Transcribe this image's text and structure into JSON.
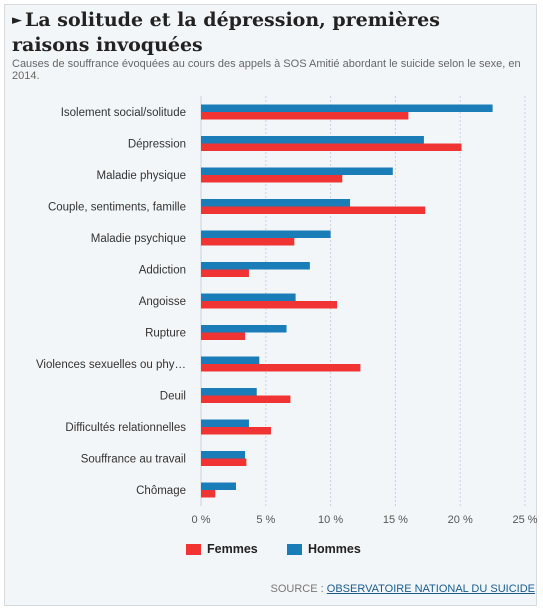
{
  "header": {
    "title": "La solitude et la dépression, premières raisons invoquées",
    "subtitle": "Causes de souffrance évoquées au cours des appels à SOS Amitié abordant le suicide selon le sexe, en 2014."
  },
  "colors": {
    "femmes": "#f03434",
    "hommes": "#1b7db7",
    "grid": "#c9d3dc"
  },
  "chart_data": {
    "type": "bar",
    "orientation": "horizontal",
    "categories": [
      "Isolement social/solitude",
      "Dépression",
      "Maladie physique",
      "Couple, sentiments, famille",
      "Maladie psychique",
      "Addiction",
      "Angoisse",
      "Rupture",
      "Violences sexuelles ou phy…",
      "Deuil",
      "Difficultés relationnelles",
      "Souffrance au travail",
      "Chômage"
    ],
    "series": [
      {
        "name": "Hommes",
        "color": "#1b7db7",
        "values": [
          22.5,
          17.2,
          14.8,
          11.5,
          10.0,
          8.4,
          7.3,
          6.6,
          4.5,
          4.3,
          3.7,
          3.4,
          2.7
        ]
      },
      {
        "name": "Femmes",
        "color": "#f03434",
        "values": [
          16.0,
          20.1,
          10.9,
          17.3,
          7.2,
          3.7,
          10.5,
          3.4,
          12.3,
          6.9,
          5.4,
          3.5,
          1.1
        ]
      }
    ],
    "xlim": [
      0,
      25
    ],
    "xticks": [
      0,
      5,
      10,
      15,
      20,
      25
    ],
    "xtick_labels": [
      "0 %",
      "5 %",
      "10 %",
      "15 %",
      "20 %",
      "25 %"
    ],
    "grid": true,
    "legend_position": "bottom"
  },
  "legend": [
    {
      "label": "Femmes",
      "color": "#f03434"
    },
    {
      "label": "Hommes",
      "color": "#1b7db7"
    }
  ],
  "footer": {
    "source_prefix": "SOURCE : ",
    "source_link": "OBSERVATOIRE NATIONAL DU SUICIDE"
  }
}
